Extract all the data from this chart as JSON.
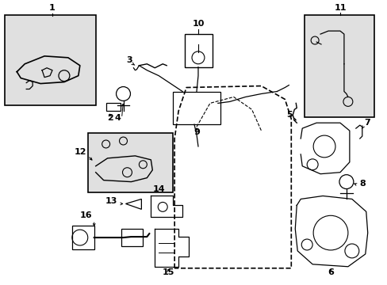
{
  "bg_color": "#ffffff",
  "line_color": "#000000",
  "shaded_box_color": "#e0e0e0"
}
